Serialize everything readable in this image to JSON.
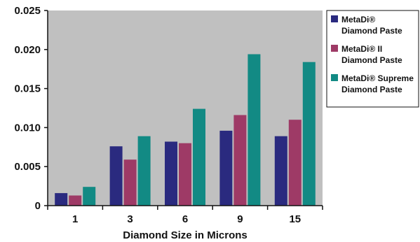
{
  "chart_data": {
    "type": "bar",
    "title": "",
    "xlabel": "Diamond Size in Microns",
    "ylabel": "",
    "categories": [
      "1",
      "3",
      "6",
      "9",
      "15"
    ],
    "ylim": [
      0,
      0.025
    ],
    "yticks": [
      "0",
      "0.005",
      "0.010",
      "0.015",
      "0.020",
      "0.025"
    ],
    "yticks_values": [
      0,
      0.005,
      0.01,
      0.015,
      0.02,
      0.025
    ],
    "grid": false,
    "legend_position": "right",
    "series": [
      {
        "name_lines": [
          "MetaDi®",
          "Diamond Paste"
        ],
        "color": "#2a2a7f",
        "values": [
          0.0016,
          0.0076,
          0.0082,
          0.0096,
          0.0089
        ]
      },
      {
        "name_lines": [
          "MetaDi® II",
          "Diamond Paste"
        ],
        "color": "#9e3a66",
        "values": [
          0.0013,
          0.0059,
          0.008,
          0.0116,
          0.011
        ]
      },
      {
        "name_lines": [
          "MetaDi® Supreme",
          "Diamond Paste"
        ],
        "color": "#128a84",
        "values": [
          0.0024,
          0.0089,
          0.0124,
          0.0194,
          0.0184
        ]
      }
    ],
    "plot_background": "#c0c0c0"
  }
}
